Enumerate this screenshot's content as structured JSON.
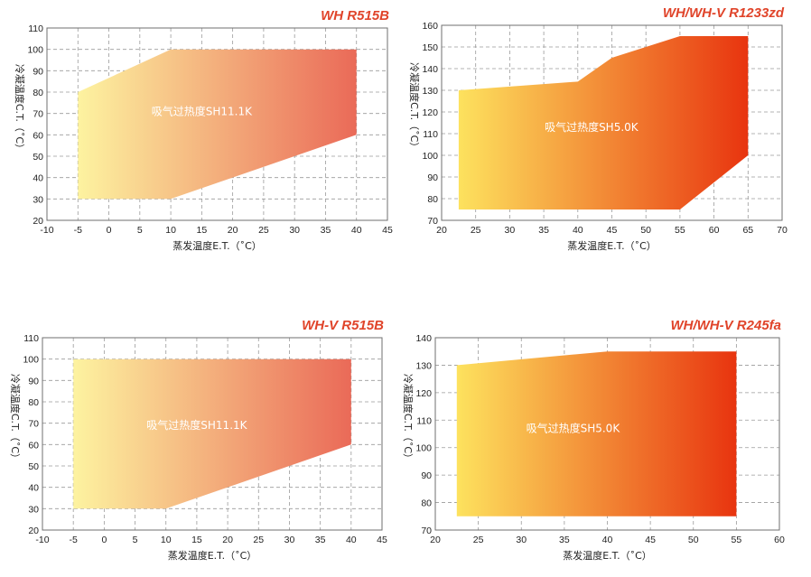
{
  "colors": {
    "title": "#e0442a",
    "gradient_light_start": "#fdf3a0",
    "gradient_light_end": "#ea6a58",
    "gradient_strong_start": "#fde25e",
    "gradient_strong_end": "#e8340f"
  },
  "chart_data": [
    {
      "type": "area",
      "title": "WH R515B",
      "xlabel": "蒸发温度E.T.（˚C）",
      "ylabel": "冷凝温度C.T.（˚C）",
      "xlim": [
        -10,
        45
      ],
      "ylim": [
        20,
        110
      ],
      "xticks": [
        -10,
        -5,
        0,
        5,
        10,
        15,
        20,
        25,
        30,
        35,
        40,
        45
      ],
      "yticks": [
        20,
        30,
        40,
        50,
        60,
        70,
        80,
        90,
        100,
        110
      ],
      "grid": true,
      "gradient": "light",
      "region_label": "吸气过热度SH11.1K",
      "region_label_at": [
        15,
        71
      ],
      "envelope": [
        [
          -5,
          30
        ],
        [
          -5,
          80
        ],
        [
          10,
          100
        ],
        [
          40,
          100
        ],
        [
          40,
          60
        ],
        [
          10,
          30
        ]
      ]
    },
    {
      "type": "area",
      "title": "WH/WH-V R1233zd",
      "xlabel": "蒸发温度E.T.（˚C）",
      "ylabel": "冷凝温度C.T.（˚C）",
      "xlim": [
        20,
        70
      ],
      "ylim": [
        70,
        160
      ],
      "xticks": [
        20,
        25,
        30,
        35,
        40,
        45,
        50,
        55,
        60,
        65,
        70
      ],
      "yticks": [
        70,
        80,
        90,
        100,
        110,
        120,
        130,
        140,
        150,
        160
      ],
      "grid": true,
      "gradient": "strong",
      "region_label": "吸气过热度SH5.0K",
      "region_label_at": [
        42,
        113
      ],
      "envelope": [
        [
          22.5,
          75
        ],
        [
          22.5,
          130
        ],
        [
          40,
          134
        ],
        [
          45,
          145
        ],
        [
          55,
          155
        ],
        [
          65,
          155
        ],
        [
          65,
          100
        ],
        [
          55,
          75
        ]
      ]
    },
    {
      "type": "area",
      "title": "WH-V R515B",
      "xlabel": "蒸发温度E.T.（˚C）",
      "ylabel": "冷凝温度C.T.（˚C）",
      "xlim": [
        -10,
        45
      ],
      "ylim": [
        20,
        110
      ],
      "xticks": [
        -10,
        -5,
        0,
        5,
        10,
        15,
        20,
        25,
        30,
        35,
        40,
        45
      ],
      "yticks": [
        20,
        30,
        40,
        50,
        60,
        70,
        80,
        90,
        100,
        110
      ],
      "grid": true,
      "gradient": "light",
      "region_label": "吸气过热度SH11.1K",
      "region_label_at": [
        15,
        69
      ],
      "envelope": [
        [
          -5,
          30
        ],
        [
          -5,
          100
        ],
        [
          40,
          100
        ],
        [
          40,
          60
        ],
        [
          10,
          30
        ]
      ]
    },
    {
      "type": "area",
      "title": "WH/WH-V R245fa",
      "xlabel": "蒸发温度E.T.（˚C）",
      "ylabel": "冷凝温度C.T.（˚C）",
      "xlim": [
        20,
        60
      ],
      "ylim": [
        70,
        140
      ],
      "xticks": [
        20,
        25,
        30,
        35,
        40,
        45,
        50,
        55,
        60
      ],
      "yticks": [
        70,
        80,
        90,
        100,
        110,
        120,
        130,
        140
      ],
      "grid": true,
      "gradient": "strong",
      "region_label": "吸气过热度SH5.0K",
      "region_label_at": [
        36,
        107
      ],
      "envelope": [
        [
          22.5,
          75
        ],
        [
          22.5,
          130
        ],
        [
          40,
          135
        ],
        [
          55,
          135
        ],
        [
          55,
          75
        ]
      ]
    }
  ]
}
